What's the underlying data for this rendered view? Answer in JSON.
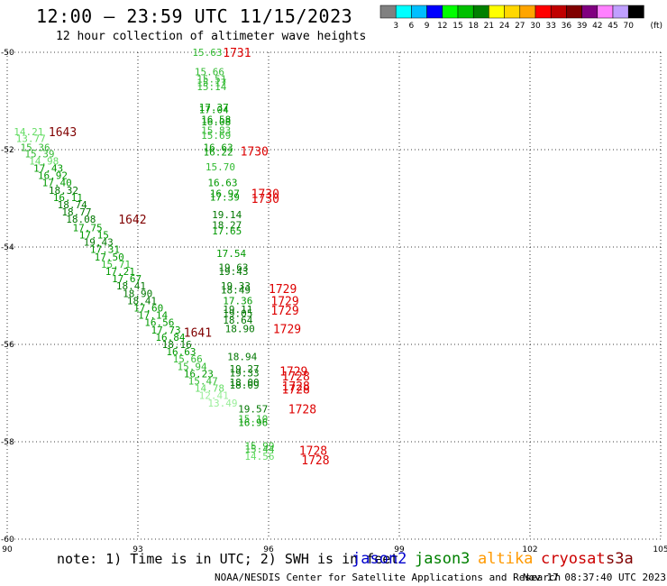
{
  "header": {
    "title": "12:00 – 23:59 UTC 11/15/2023",
    "subtitle": "12 hour collection of altimeter wave heights"
  },
  "legend": {
    "colors": [
      "#808080",
      "#00ffff",
      "#00bfff",
      "#0000ff",
      "#00ff00",
      "#00c000",
      "#008000",
      "#ffff00",
      "#ffd700",
      "#ffa500",
      "#ff0000",
      "#c00000",
      "#800000",
      "#800080",
      "#ff80ff",
      "#c0a0ff",
      "#000000"
    ],
    "labels": [
      "3",
      "6",
      "9",
      "12",
      "15",
      "18",
      "21",
      "24",
      "27",
      "30",
      "33",
      "36",
      "39",
      "42",
      "45",
      "70"
    ],
    "unit": "(ft)"
  },
  "footer": {
    "note": "note: 1) Time is in UTC; 2) SWH is in feet",
    "credit": "NOAA/NESDIS Center for Satellite Applications and Research",
    "timestamp": "Nov 17 08:37:40 UTC 2023"
  },
  "satellites": [
    {
      "name": "jason2",
      "color": "#0000cc"
    },
    {
      "name": "jason3",
      "color": "#008000"
    },
    {
      "name": "altika",
      "color": "#ff9900"
    },
    {
      "name": "cryosat",
      "color": "#cc0000"
    },
    {
      "name": "s3a",
      "color": "#800000"
    }
  ],
  "chart_data": {
    "type": "scatter",
    "xlabel": "",
    "ylabel": "",
    "xlim": [
      90,
      105
    ],
    "ylim": [
      -60,
      -50
    ],
    "xticks": [
      "90",
      "93",
      "96",
      "99",
      "102",
      "105"
    ],
    "yticks": [
      "-50",
      "-52",
      "-54",
      "-56",
      "-58",
      "-60"
    ],
    "grid": true,
    "point_labels": [
      {
        "x": 90.15,
        "y": -51.63,
        "text": "14.21",
        "color": "#66dd66"
      },
      {
        "x": 90.2,
        "y": -51.77,
        "text": "13.77",
        "color": "#66dd66"
      },
      {
        "x": 90.3,
        "y": -51.95,
        "text": "15.36",
        "color": "#33bb33"
      },
      {
        "x": 90.4,
        "y": -52.08,
        "text": "15.39",
        "color": "#33bb33"
      },
      {
        "x": 90.5,
        "y": -52.23,
        "text": "14.98",
        "color": "#66dd66"
      },
      {
        "x": 90.6,
        "y": -52.38,
        "text": "17.43",
        "color": "#009900"
      },
      {
        "x": 90.7,
        "y": -52.53,
        "text": "16.92",
        "color": "#009900"
      },
      {
        "x": 90.8,
        "y": -52.68,
        "text": "17.40",
        "color": "#009900"
      },
      {
        "x": 90.95,
        "y": -52.83,
        "text": "18.32",
        "color": "#007700"
      },
      {
        "x": 91.05,
        "y": -52.98,
        "text": "16.11",
        "color": "#009900"
      },
      {
        "x": 91.15,
        "y": -53.13,
        "text": "18.74",
        "color": "#007700"
      },
      {
        "x": 91.25,
        "y": -53.28,
        "text": "18.77",
        "color": "#007700"
      },
      {
        "x": 91.35,
        "y": -53.43,
        "text": "18.08",
        "color": "#007700"
      },
      {
        "x": 91.5,
        "y": -53.6,
        "text": "17.75",
        "color": "#009900"
      },
      {
        "x": 91.65,
        "y": -53.75,
        "text": "17.15",
        "color": "#009900"
      },
      {
        "x": 91.75,
        "y": -53.9,
        "text": "19.43",
        "color": "#007700"
      },
      {
        "x": 91.9,
        "y": -54.05,
        "text": "17.31",
        "color": "#009900"
      },
      {
        "x": 92.0,
        "y": -54.2,
        "text": "17.50",
        "color": "#009900"
      },
      {
        "x": 92.15,
        "y": -54.35,
        "text": "15.71",
        "color": "#33bb33"
      },
      {
        "x": 92.25,
        "y": -54.5,
        "text": "17.21",
        "color": "#009900"
      },
      {
        "x": 92.4,
        "y": -54.65,
        "text": "17.67",
        "color": "#009900"
      },
      {
        "x": 92.5,
        "y": -54.8,
        "text": "18.41",
        "color": "#007700"
      },
      {
        "x": 92.65,
        "y": -54.95,
        "text": "18.90",
        "color": "#007700"
      },
      {
        "x": 92.75,
        "y": -55.1,
        "text": "18.41",
        "color": "#007700"
      },
      {
        "x": 92.9,
        "y": -55.25,
        "text": "17.60",
        "color": "#009900"
      },
      {
        "x": 93.0,
        "y": -55.4,
        "text": "17.14",
        "color": "#009900"
      },
      {
        "x": 93.15,
        "y": -55.55,
        "text": "16.56",
        "color": "#009900"
      },
      {
        "x": 93.3,
        "y": -55.7,
        "text": "17.73",
        "color": "#009900"
      },
      {
        "x": 93.4,
        "y": -55.85,
        "text": "16.84",
        "color": "#009900"
      },
      {
        "x": 93.55,
        "y": -56.0,
        "text": "18.16",
        "color": "#007700"
      },
      {
        "x": 93.65,
        "y": -56.15,
        "text": "16.63",
        "color": "#009900"
      },
      {
        "x": 93.8,
        "y": -56.3,
        "text": "15.66",
        "color": "#33bb33"
      },
      {
        "x": 93.9,
        "y": -56.45,
        "text": "15.94",
        "color": "#33bb33"
      },
      {
        "x": 94.05,
        "y": -56.6,
        "text": "16.23",
        "color": "#009900"
      },
      {
        "x": 94.15,
        "y": -56.75,
        "text": "15.47",
        "color": "#33bb33"
      },
      {
        "x": 94.3,
        "y": -56.9,
        "text": "14.78",
        "color": "#66dd66"
      },
      {
        "x": 94.4,
        "y": -57.05,
        "text": "12.41",
        "color": "#99ee99"
      },
      {
        "x": 94.6,
        "y": -57.2,
        "text": "13.49",
        "color": "#99ee99"
      },
      {
        "x": 94.25,
        "y": -50.0,
        "text": "15.63",
        "color": "#33bb33"
      },
      {
        "x": 94.3,
        "y": -50.4,
        "text": "15.66",
        "color": "#33bb33"
      },
      {
        "x": 94.35,
        "y": -50.55,
        "text": "15.51",
        "color": "#33bb33"
      },
      {
        "x": 94.35,
        "y": -50.62,
        "text": "15.17",
        "color": "#33bb33"
      },
      {
        "x": 94.35,
        "y": -50.7,
        "text": "15.14",
        "color": "#33bb33"
      },
      {
        "x": 94.4,
        "y": -51.13,
        "text": "17.37",
        "color": "#009900"
      },
      {
        "x": 94.4,
        "y": -51.18,
        "text": "17.04",
        "color": "#009900"
      },
      {
        "x": 94.45,
        "y": -51.38,
        "text": "16.58",
        "color": "#009900"
      },
      {
        "x": 94.45,
        "y": -51.43,
        "text": "16.08",
        "color": "#009900"
      },
      {
        "x": 94.45,
        "y": -51.6,
        "text": "15.83",
        "color": "#33bb33"
      },
      {
        "x": 94.45,
        "y": -51.7,
        "text": "15.69",
        "color": "#33bb33"
      },
      {
        "x": 94.5,
        "y": -51.95,
        "text": "16.63",
        "color": "#009900"
      },
      {
        "x": 94.5,
        "y": -52.05,
        "text": "16.22",
        "color": "#009900"
      },
      {
        "x": 94.55,
        "y": -52.35,
        "text": "15.70",
        "color": "#33bb33"
      },
      {
        "x": 94.6,
        "y": -52.68,
        "text": "16.63",
        "color": "#009900"
      },
      {
        "x": 94.65,
        "y": -52.9,
        "text": "16.97",
        "color": "#009900"
      },
      {
        "x": 94.65,
        "y": -52.97,
        "text": "17.39",
        "color": "#009900"
      },
      {
        "x": 94.7,
        "y": -53.33,
        "text": "19.14",
        "color": "#007700"
      },
      {
        "x": 94.7,
        "y": -53.55,
        "text": "18.27",
        "color": "#007700"
      },
      {
        "x": 94.7,
        "y": -53.67,
        "text": "17.65",
        "color": "#009900"
      },
      {
        "x": 94.8,
        "y": -54.13,
        "text": "17.54",
        "color": "#009900"
      },
      {
        "x": 94.85,
        "y": -54.42,
        "text": "19.63",
        "color": "#007700"
      },
      {
        "x": 94.85,
        "y": -54.5,
        "text": "19.43",
        "color": "#007700"
      },
      {
        "x": 94.9,
        "y": -54.8,
        "text": "19.33",
        "color": "#007700"
      },
      {
        "x": 94.9,
        "y": -54.88,
        "text": "18.49",
        "color": "#007700"
      },
      {
        "x": 94.95,
        "y": -55.1,
        "text": "17.36",
        "color": "#009900"
      },
      {
        "x": 94.95,
        "y": -55.28,
        "text": "19.11",
        "color": "#007700"
      },
      {
        "x": 94.95,
        "y": -55.36,
        "text": "19.05",
        "color": "#007700"
      },
      {
        "x": 94.95,
        "y": -55.5,
        "text": "18.64",
        "color": "#007700"
      },
      {
        "x": 95.0,
        "y": -55.68,
        "text": "18.90",
        "color": "#007700"
      },
      {
        "x": 95.05,
        "y": -56.25,
        "text": "18.94",
        "color": "#007700"
      },
      {
        "x": 95.1,
        "y": -56.5,
        "text": "19.27",
        "color": "#007700"
      },
      {
        "x": 95.1,
        "y": -56.58,
        "text": "19.33",
        "color": "#007700"
      },
      {
        "x": 95.1,
        "y": -56.78,
        "text": "18.00",
        "color": "#007700"
      },
      {
        "x": 95.1,
        "y": -56.83,
        "text": "18.09",
        "color": "#007700"
      },
      {
        "x": 95.3,
        "y": -57.32,
        "text": "19.57",
        "color": "#007700"
      },
      {
        "x": 95.3,
        "y": -57.53,
        "text": "15.10",
        "color": "#33bb33"
      },
      {
        "x": 95.3,
        "y": -57.6,
        "text": "16.96",
        "color": "#009900"
      },
      {
        "x": 95.45,
        "y": -58.08,
        "text": "15.99",
        "color": "#33bb33"
      },
      {
        "x": 95.45,
        "y": -58.15,
        "text": "15.44",
        "color": "#33bb33"
      },
      {
        "x": 95.45,
        "y": -58.3,
        "text": "14.56",
        "color": "#66dd66"
      }
    ],
    "pass_labels": [
      {
        "x": 90.95,
        "y": -51.63,
        "text": "1643",
        "color": "#800000"
      },
      {
        "x": 92.55,
        "y": -53.43,
        "text": "1642",
        "color": "#800000"
      },
      {
        "x": 94.05,
        "y": -55.75,
        "text": "1641",
        "color": "#800000"
      },
      {
        "x": 94.95,
        "y": -50.0,
        "text": "1731",
        "color": "#dd0000"
      },
      {
        "x": 95.35,
        "y": -52.03,
        "text": "1730",
        "color": "#dd0000"
      },
      {
        "x": 95.6,
        "y": -52.9,
        "text": "1730",
        "color": "#dd0000"
      },
      {
        "x": 95.6,
        "y": -53.0,
        "text": "1730",
        "color": "#dd0000"
      },
      {
        "x": 96.0,
        "y": -54.85,
        "text": "1729",
        "color": "#dd0000"
      },
      {
        "x": 96.05,
        "y": -55.1,
        "text": "1729",
        "color": "#dd0000"
      },
      {
        "x": 96.05,
        "y": -55.3,
        "text": "1729",
        "color": "#dd0000"
      },
      {
        "x": 96.1,
        "y": -55.68,
        "text": "1729",
        "color": "#dd0000"
      },
      {
        "x": 96.25,
        "y": -56.55,
        "text": "1729",
        "color": "#dd0000"
      },
      {
        "x": 96.3,
        "y": -56.65,
        "text": "1728",
        "color": "#dd0000"
      },
      {
        "x": 96.3,
        "y": -56.85,
        "text": "1728",
        "color": "#dd0000"
      },
      {
        "x": 96.3,
        "y": -56.92,
        "text": "1728",
        "color": "#dd0000"
      },
      {
        "x": 96.45,
        "y": -57.32,
        "text": "1728",
        "color": "#dd0000"
      },
      {
        "x": 96.7,
        "y": -58.18,
        "text": "1728",
        "color": "#dd0000"
      },
      {
        "x": 96.75,
        "y": -58.37,
        "text": "1728",
        "color": "#dd0000"
      }
    ]
  }
}
